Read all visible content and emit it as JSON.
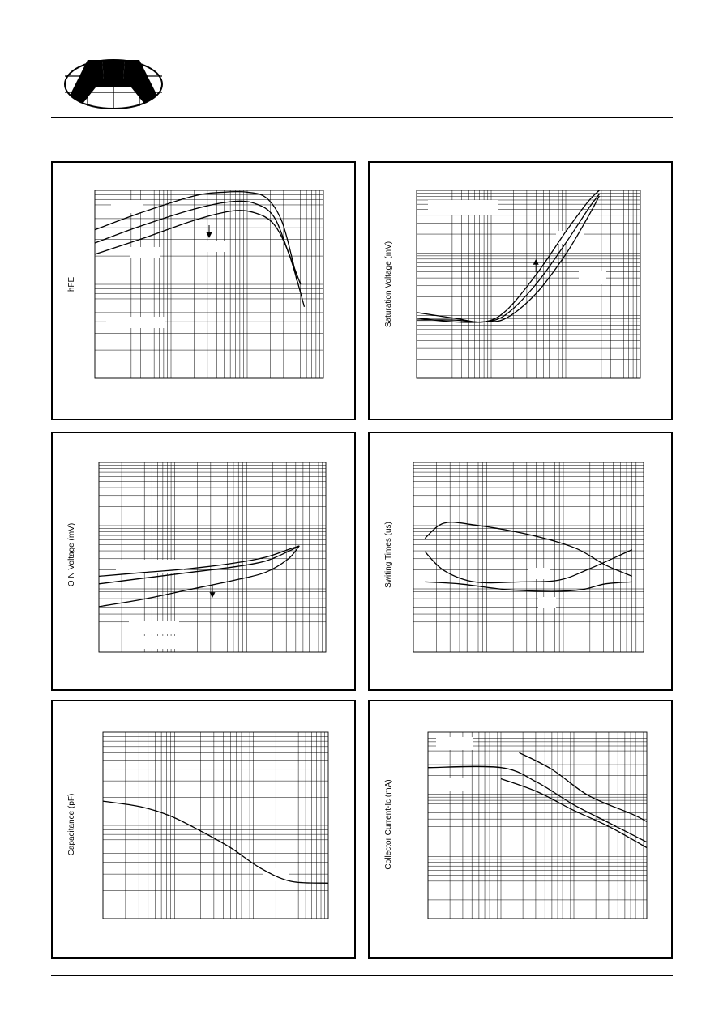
{
  "header": {
    "logo_icon": "company-logo-icon"
  },
  "chart_data": [
    {
      "type": "line",
      "ylabel": "hFE",
      "xscale": "log",
      "yscale": "log",
      "xlim_decades": 3,
      "ylim_decades": 2,
      "grid": true,
      "series": [
        {
          "values": [
            [
              0,
              0.79
            ],
            [
              0.6,
              0.88
            ],
            [
              1.3,
              0.97
            ],
            [
              1.7,
              0.99
            ],
            [
              2.0,
              0.99
            ],
            [
              2.25,
              0.96
            ],
            [
              2.45,
              0.84
            ],
            [
              2.6,
              0.62
            ],
            [
              2.65,
              0.52
            ]
          ]
        },
        {
          "values": [
            [
              0,
              0.72
            ],
            [
              0.6,
              0.81
            ],
            [
              1.3,
              0.9
            ],
            [
              1.8,
              0.94
            ],
            [
              2.1,
              0.93
            ],
            [
              2.35,
              0.86
            ],
            [
              2.55,
              0.66
            ],
            [
              2.7,
              0.5
            ]
          ]
        },
        {
          "values": [
            [
              0,
              0.66
            ],
            [
              0.6,
              0.74
            ],
            [
              1.3,
              0.84
            ],
            [
              1.8,
              0.89
            ],
            [
              2.1,
              0.88
            ],
            [
              2.35,
              0.82
            ],
            [
              2.55,
              0.66
            ],
            [
              2.75,
              0.38
            ]
          ]
        }
      ],
      "annotations": [
        {
          "type": "arrow",
          "direction": "down",
          "at": [
            1.5,
            0.78
          ]
        }
      ]
    },
    {
      "type": "line",
      "ylabel": "Saturation Voltage (mV)",
      "xscale": "log",
      "yscale": "log",
      "xlim_decades": 3,
      "ylim_decades": 3,
      "grid": true,
      "series": [
        {
          "values": [
            [
              0,
              0.35
            ],
            [
              0.5,
              0.32
            ],
            [
              0.9,
              0.3
            ],
            [
              1.2,
              0.36
            ],
            [
              1.6,
              0.55
            ],
            [
              2.0,
              0.78
            ],
            [
              2.3,
              0.94
            ],
            [
              2.45,
              1.0
            ]
          ]
        },
        {
          "values": [
            [
              0,
              0.31
            ],
            [
              0.5,
              0.31
            ],
            [
              0.9,
              0.3
            ],
            [
              1.2,
              0.34
            ],
            [
              1.6,
              0.5
            ],
            [
              2.0,
              0.72
            ],
            [
              2.3,
              0.9
            ],
            [
              2.45,
              0.98
            ]
          ]
        },
        {
          "values": [
            [
              0,
              0.32
            ],
            [
              0.5,
              0.3
            ],
            [
              0.9,
              0.3
            ],
            [
              1.2,
              0.32
            ],
            [
              1.6,
              0.45
            ],
            [
              2.0,
              0.66
            ],
            [
              2.3,
              0.86
            ],
            [
              2.45,
              0.97
            ]
          ]
        }
      ],
      "annotations": [
        {
          "type": "arrow",
          "direction": "up",
          "at": [
            1.6,
            0.6
          ]
        }
      ]
    },
    {
      "type": "line",
      "ylabel": "O N Voltage (mV)",
      "xscale": "log",
      "yscale": "log",
      "xlim_decades": 3,
      "ylim_decades": 3,
      "grid": true,
      "series": [
        {
          "values": [
            [
              0,
              0.4
            ],
            [
              0.6,
              0.42
            ],
            [
              1.2,
              0.44
            ],
            [
              1.8,
              0.47
            ],
            [
              2.2,
              0.5
            ],
            [
              2.5,
              0.54
            ],
            [
              2.65,
              0.56
            ]
          ]
        },
        {
          "values": [
            [
              0,
              0.36
            ],
            [
              0.6,
              0.39
            ],
            [
              1.2,
              0.42
            ],
            [
              1.8,
              0.45
            ],
            [
              2.2,
              0.48
            ],
            [
              2.5,
              0.53
            ],
            [
              2.65,
              0.56
            ]
          ]
        },
        {
          "values": [
            [
              0,
              0.24
            ],
            [
              0.6,
              0.28
            ],
            [
              1.2,
              0.33
            ],
            [
              1.8,
              0.38
            ],
            [
              2.2,
              0.42
            ],
            [
              2.5,
              0.49
            ],
            [
              2.65,
              0.56
            ]
          ]
        }
      ],
      "annotations": [
        {
          "type": "arrow",
          "direction": "down",
          "at": [
            1.5,
            0.32
          ]
        }
      ]
    },
    {
      "type": "line",
      "ylabel": "Switing Times (us)",
      "xscale": "log",
      "yscale": "log",
      "xlim_decades": 3,
      "ylim_decades": 3,
      "grid": true,
      "series": [
        {
          "values": [
            [
              0.15,
              0.6
            ],
            [
              0.4,
              0.68
            ],
            [
              0.8,
              0.67
            ],
            [
              1.5,
              0.62
            ],
            [
              2.1,
              0.55
            ],
            [
              2.5,
              0.46
            ],
            [
              2.85,
              0.4
            ]
          ]
        },
        {
          "values": [
            [
              0.15,
              0.53
            ],
            [
              0.4,
              0.43
            ],
            [
              0.8,
              0.37
            ],
            [
              1.4,
              0.37
            ],
            [
              1.9,
              0.38
            ],
            [
              2.3,
              0.44
            ],
            [
              2.85,
              0.54
            ]
          ]
        },
        {
          "values": [
            [
              0.15,
              0.37
            ],
            [
              0.6,
              0.36
            ],
            [
              1.2,
              0.33
            ],
            [
              1.8,
              0.32
            ],
            [
              2.2,
              0.33
            ],
            [
              2.5,
              0.36
            ],
            [
              2.85,
              0.37
            ]
          ]
        }
      ]
    },
    {
      "type": "line",
      "ylabel": "Capacitance (pF)",
      "xscale": "log",
      "yscale": "log",
      "xlim_decades": 3,
      "ylim_decades": 2,
      "grid": true,
      "series": [
        {
          "values": [
            [
              0,
              0.63
            ],
            [
              0.5,
              0.6
            ],
            [
              0.9,
              0.55
            ],
            [
              1.3,
              0.47
            ],
            [
              1.7,
              0.38
            ],
            [
              2.1,
              0.27
            ],
            [
              2.5,
              0.2
            ],
            [
              3.0,
              0.19
            ]
          ]
        }
      ]
    },
    {
      "type": "line",
      "ylabel": "Collector Current-Ic (mA)",
      "xscale": "log",
      "yscale": "log",
      "xlim_decades": 3,
      "ylim_decades": 3,
      "grid": true,
      "series": [
        {
          "values": [
            [
              1.25,
              0.89
            ],
            [
              1.7,
              0.8
            ],
            [
              2.2,
              0.66
            ],
            [
              2.8,
              0.56
            ],
            [
              3.0,
              0.52
            ]
          ]
        },
        {
          "values": [
            [
              0,
              0.81
            ],
            [
              1.0,
              0.81
            ],
            [
              1.5,
              0.73
            ],
            [
              2.0,
              0.61
            ],
            [
              2.5,
              0.51
            ],
            [
              3.0,
              0.41
            ]
          ]
        },
        {
          "values": [
            [
              1.0,
              0.75
            ],
            [
              1.5,
              0.68
            ],
            [
              2.0,
              0.58
            ],
            [
              2.5,
              0.49
            ],
            [
              3.0,
              0.38
            ]
          ]
        }
      ]
    }
  ]
}
